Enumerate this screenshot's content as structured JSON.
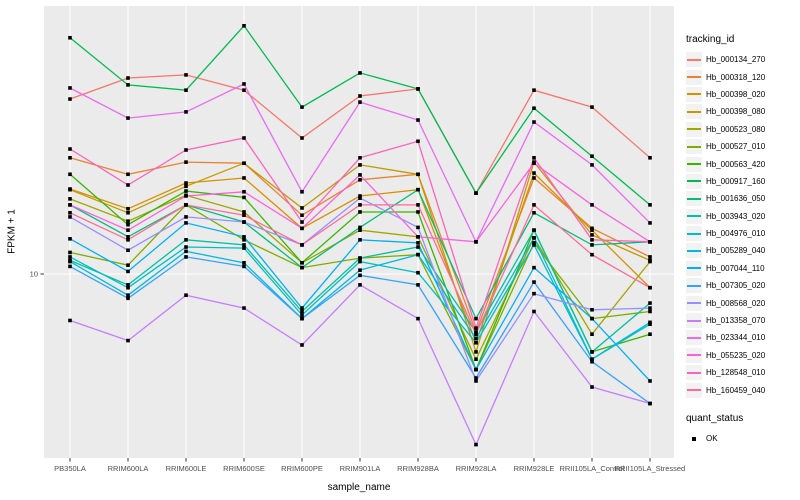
{
  "figure": {
    "panel_background": "#EBEBEB",
    "grid_color": "#FFFFFF",
    "axis_text_color": "#4D4D4D",
    "point_color": "#000000",
    "legend_key_background": "#F2F2F2"
  },
  "axes": {
    "x_label": "sample_name",
    "y_label": "FPKM + 1",
    "y_tick_labels": [
      "10"
    ]
  },
  "legend": {
    "tracking_title": "tracking_id",
    "quant_title": "quant_status",
    "quant_items": [
      {
        "label": "OK"
      }
    ]
  },
  "chart_data": {
    "type": "line",
    "title": "",
    "xlabel": "sample_name",
    "ylabel": "FPKM + 1",
    "y_scale": "log10",
    "y_ticks": [
      10
    ],
    "ylim": [
      2.5,
      70
    ],
    "grid": "on",
    "legend_position": "right",
    "point_marker": "black-square",
    "quant_status": "OK",
    "categories": [
      "PB350LA",
      "RRIM600LA",
      "RRIM600LE",
      "RRIM600SE",
      "RRIM600PE",
      "RRIM901LA",
      "RRIM928BA",
      "RRIM928LA",
      "RRIM928LE",
      "RRII105LA_Control",
      "RRII105LA_Stressed"
    ],
    "series": [
      {
        "name": "Hb_000134_270",
        "color": "#F8766D",
        "values": [
          38.3,
          45.0,
          46.1,
          41.0,
          28.4,
          39.2,
          41.4,
          18.6,
          41.0,
          36.0,
          24.4
        ]
      },
      {
        "name": "Hb_000318_120",
        "color": "#EA8331",
        "values": [
          24.4,
          21.5,
          23.6,
          23.4,
          15.7,
          20.6,
          21.5,
          6.4,
          20.9,
          14.2,
          11.4
        ]
      },
      {
        "name": "Hb_000398_020",
        "color": "#D89000",
        "values": [
          19.2,
          16.5,
          20.1,
          20.9,
          14.2,
          18.2,
          19.1,
          5.9,
          21.7,
          14.0,
          9.0
        ]
      },
      {
        "name": "Hb_000398_080",
        "color": "#C09B00",
        "values": [
          19.1,
          16.0,
          19.6,
          23.4,
          16.6,
          23.1,
          21.5,
          5.5,
          23.6,
          13.5,
          11.1
        ]
      },
      {
        "name": "Hb_000523_080",
        "color": "#A3A500",
        "values": [
          17.8,
          15.0,
          18.3,
          16.1,
          10.9,
          14.0,
          13.3,
          5.2,
          13.2,
          6.3,
          11.0
        ]
      },
      {
        "name": "Hb_000527_010",
        "color": "#7CAE00",
        "values": [
          11.8,
          10.7,
          17.0,
          13.0,
          10.5,
          11.3,
          11.6,
          4.8,
          12.7,
          7.1,
          7.5
        ]
      },
      {
        "name": "Hb_000563_420",
        "color": "#39B600",
        "values": [
          21.5,
          14.6,
          18.9,
          18.0,
          10.9,
          16.1,
          16.1,
          4.8,
          14.0,
          5.5,
          6.3
        ]
      },
      {
        "name": "Hb_000917_160",
        "color": "#00BB4E",
        "values": [
          61.3,
          42.7,
          41.0,
          67.2,
          36.0,
          46.8,
          41.4,
          18.6,
          35.7,
          24.7,
          17.0
        ]
      },
      {
        "name": "Hb_001636_050",
        "color": "#00BF7D",
        "values": [
          17.0,
          13.3,
          17.0,
          14.9,
          10.5,
          14.3,
          19.1,
          7.1,
          16.0,
          12.5,
          12.8
        ]
      },
      {
        "name": "Hb_003943_020",
        "color": "#00C1A3",
        "values": [
          11.1,
          9.2,
          13.0,
          12.5,
          7.5,
          11.3,
          12.3,
          6.4,
          14.0,
          5.5,
          8.0
        ]
      },
      {
        "name": "Hb_004976_010",
        "color": "#00BFC4",
        "values": [
          11.4,
          9.0,
          12.3,
          12.2,
          7.3,
          11.0,
          10.1,
          5.9,
          12.5,
          5.2,
          6.8
        ]
      },
      {
        "name": "Hb_005289_040",
        "color": "#00BAE0",
        "values": [
          11.0,
          8.5,
          11.9,
          10.9,
          7.1,
          10.3,
          11.6,
          6.1,
          13.2,
          5.2,
          6.9
        ]
      },
      {
        "name": "Hb_007044_110",
        "color": "#00B0F6",
        "values": [
          13.1,
          10.2,
          14.8,
          13.3,
          7.7,
          13.0,
          12.7,
          4.8,
          10.5,
          7.1,
          4.4
        ]
      },
      {
        "name": "Hb_007305_020",
        "color": "#35A2FF",
        "values": [
          10.6,
          8.3,
          11.4,
          10.6,
          7.1,
          9.9,
          9.2,
          4.5,
          9.4,
          5.1,
          3.7
        ]
      },
      {
        "name": "Hb_008568_020",
        "color": "#9590FF",
        "values": [
          15.5,
          12.0,
          15.5,
          14.9,
          12.5,
          17.9,
          14.3,
          4.4,
          8.6,
          7.6,
          7.7
        ]
      },
      {
        "name": "Hb_013358_070",
        "color": "#C77CFF",
        "values": [
          7.0,
          6.0,
          8.5,
          7.7,
          5.8,
          9.2,
          7.1,
          2.7,
          7.5,
          4.2,
          3.7
        ]
      },
      {
        "name": "Hb_023344_010",
        "color": "#E76BF3",
        "values": [
          41.7,
          33.1,
          34.7,
          43.0,
          18.8,
          37.4,
          32.6,
          12.8,
          32.1,
          23.1,
          14.8
        ]
      },
      {
        "name": "Hb_055235_020",
        "color": "#FA62DB",
        "values": [
          17.0,
          14.0,
          18.2,
          18.8,
          14.2,
          21.4,
          13.3,
          12.8,
          23.4,
          17.0,
          12.8
        ]
      },
      {
        "name": "Hb_128548_010",
        "color": "#FF62BC",
        "values": [
          26.1,
          19.8,
          25.9,
          28.4,
          14.9,
          24.4,
          27.7,
          6.6,
          24.4,
          13.0,
          12.8
        ]
      },
      {
        "name": "Hb_160459_040",
        "color": "#FF6A98",
        "values": [
          16.0,
          13.0,
          17.0,
          15.7,
          12.5,
          17.0,
          17.0,
          6.3,
          17.0,
          11.6,
          9.0
        ]
      }
    ]
  }
}
